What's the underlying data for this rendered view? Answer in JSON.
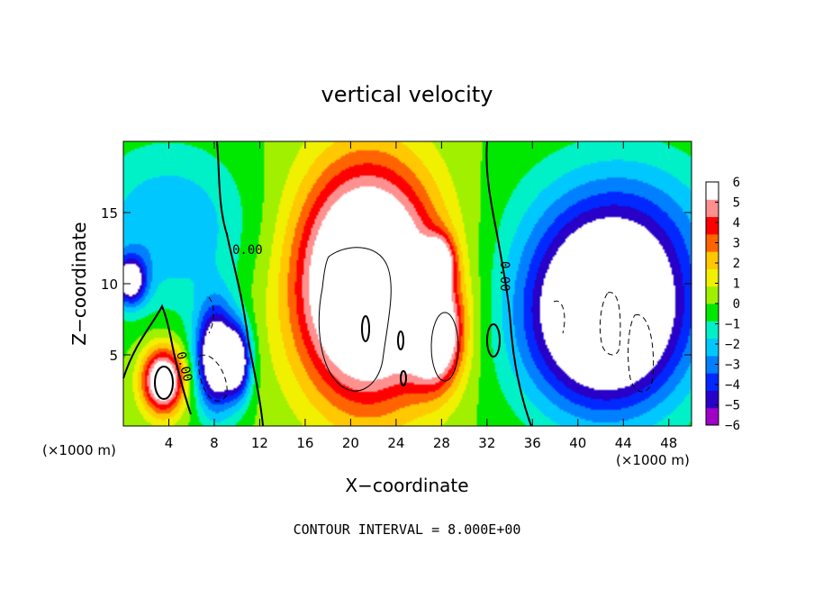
{
  "chart_data": {
    "type": "heatmap",
    "title": "vertical velocity",
    "xlabel": "X−coordinate",
    "ylabel": "Z−coordinate",
    "x_unit_left": "(×1000 m)",
    "x_unit_right": "(×1000 m)",
    "xlim": [
      0,
      50
    ],
    "ylim": [
      0,
      20
    ],
    "xticks": [
      "4",
      "8",
      "12",
      "16",
      "20",
      "24",
      "28",
      "32",
      "36",
      "40",
      "44",
      "48"
    ],
    "xtick_values": [
      4,
      8,
      12,
      16,
      20,
      24,
      28,
      32,
      36,
      40,
      44,
      48
    ],
    "yticks": [
      "5",
      "10",
      "15"
    ],
    "ytick_values": [
      5,
      10,
      15
    ],
    "colorbar": {
      "labels": [
        "6",
        "5",
        "4",
        "3",
        "2",
        "1",
        "0",
        "−1",
        "−2",
        "−3",
        "−4",
        "−5",
        "−6"
      ],
      "values": [
        6,
        5,
        4,
        3,
        2,
        1,
        0,
        -1,
        -2,
        -3,
        -4,
        -5,
        -6
      ],
      "colors": [
        "#a000c8",
        "#2800c8",
        "#0028ff",
        "#0080ff",
        "#00c8ff",
        "#00f0c8",
        "#00e800",
        "#a0f000",
        "#f0f000",
        "#ffc800",
        "#ff6400",
        "#ff0000",
        "#ff9090",
        "#ffffff"
      ]
    },
    "contour_labels": [
      "0.00",
      "0.00",
      "0.00"
    ],
    "contour_interval_text": "CONTOUR INTERVAL =  8.000E+00",
    "features": [
      {
        "kind": "updraft",
        "x": 3.5,
        "z": 3.2,
        "sx": 1.3,
        "sz": 1.6,
        "w": 9
      },
      {
        "kind": "downdraft",
        "x": 8.2,
        "z": 4.8,
        "sx": 1.3,
        "sz": 2.6,
        "w": -9
      },
      {
        "kind": "downdraft",
        "x": 10.2,
        "z": 4.5,
        "sx": 0.8,
        "sz": 1.8,
        "w": -6
      },
      {
        "kind": "downdraft",
        "x": 0.6,
        "z": 10.2,
        "sx": 1.0,
        "sz": 1.2,
        "w": -7
      },
      {
        "kind": "updraft",
        "x": 21.5,
        "z": 10,
        "sx": 4.2,
        "sz": 5.5,
        "w": 13
      },
      {
        "kind": "updraft",
        "x": 27.5,
        "z": 6.5,
        "sx": 1.6,
        "sz": 2.5,
        "w": 8
      },
      {
        "kind": "updraft",
        "x": 27.8,
        "z": 11.5,
        "sx": 0.9,
        "sz": 1.2,
        "w": 6
      },
      {
        "kind": "downdraft",
        "x": 42.5,
        "z": 7.5,
        "sx": 5,
        "sz": 4.5,
        "w": -11
      },
      {
        "kind": "downdraft",
        "x": 4,
        "z": 14,
        "sx": 5,
        "sz": 4,
        "w": -3
      },
      {
        "kind": "downdraft",
        "x": 44,
        "z": 14,
        "sx": 6,
        "sz": 4,
        "w": -3
      }
    ]
  }
}
